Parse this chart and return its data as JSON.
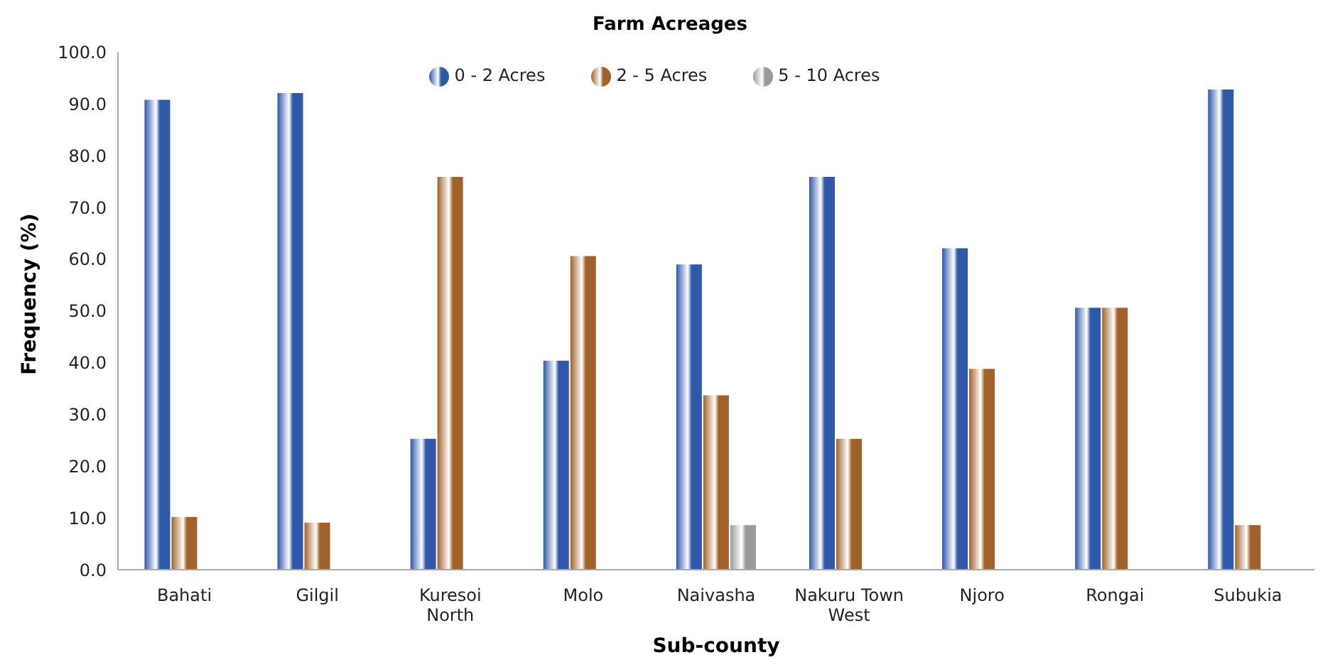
{
  "chart_data": {
    "type": "bar",
    "title": "Farm Acreages",
    "xlabel": "Sub-county",
    "ylabel": "Frequency (%)",
    "categories": [
      "Bahati",
      "Gilgil",
      "Kuresoi North",
      "Molo",
      "Naivasha",
      "Nakuru Town West",
      "Njoro",
      "Rongai",
      "Subukia"
    ],
    "series": [
      {
        "name": "0 - 2 Acres",
        "color": "#2f58a8",
        "values": [
          90.8,
          92.1,
          25.3,
          40.4,
          59.0,
          75.9,
          62.1,
          50.6,
          92.8
        ]
      },
      {
        "name": "2 - 5 Acres",
        "color": "#a0622a",
        "values": [
          10.2,
          9.1,
          75.9,
          60.6,
          33.7,
          25.3,
          38.8,
          50.6,
          8.6
        ]
      },
      {
        "name": "5 - 10 Acres",
        "color": "#9a9a9a",
        "values": [
          null,
          null,
          null,
          null,
          8.6,
          null,
          null,
          null,
          null
        ]
      }
    ],
    "ylim": [
      0,
      100
    ],
    "yticks": [
      {
        "value": 0,
        "label": "0.0"
      },
      {
        "value": 10,
        "label": "10.0"
      },
      {
        "value": 20,
        "label": "20.0"
      },
      {
        "value": 30,
        "label": "30.0"
      },
      {
        "value": 40,
        "label": "40.0"
      },
      {
        "value": 50,
        "label": "50.0"
      },
      {
        "value": 60,
        "label": "60.0"
      },
      {
        "value": 70,
        "label": "70.0"
      },
      {
        "value": 80,
        "label": "80.0"
      },
      {
        "value": 90,
        "label": "90.0"
      },
      {
        "value": 100,
        "label": "100.0"
      }
    ],
    "grid": false,
    "legend": "top"
  }
}
